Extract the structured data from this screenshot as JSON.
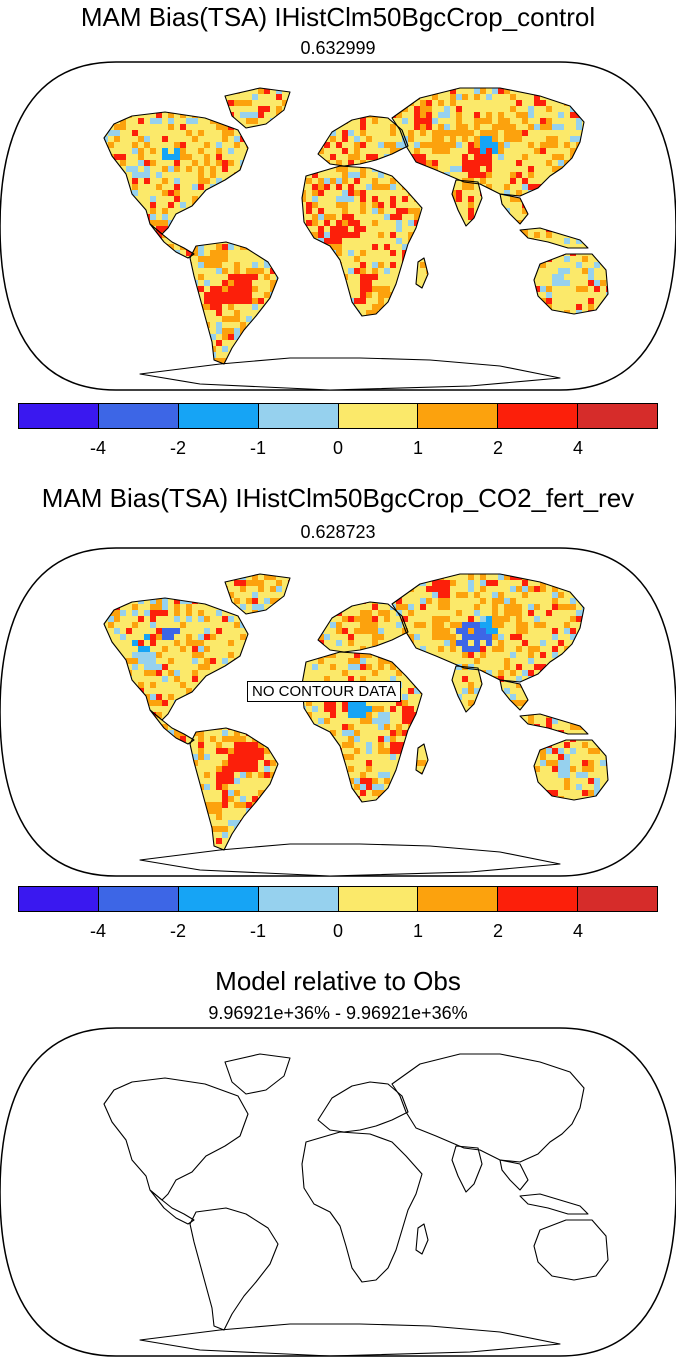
{
  "panels": [
    {
      "title": "MAM Bias(TSA) IHistClm50BgcCrop_control",
      "subtitle": "0.632999"
    },
    {
      "title": "MAM Bias(TSA) IHistClm50BgcCrop_CO2_fert_rev",
      "subtitle": "0.628723"
    },
    {
      "title": "Model relative to Obs",
      "subtitle": "9.96921e+36% - 9.96921e+36%",
      "overlay_text": "NO CONTOUR DATA"
    }
  ],
  "colorbar": {
    "labels": [
      "-4",
      "-2",
      "-1",
      "0",
      "1",
      "2",
      "4"
    ],
    "colors": [
      "#3a18f0",
      "#3d66e6",
      "#16a4f5",
      "#96d1ee",
      "#fbe96a",
      "#fca20d",
      "#fc1f0a",
      "#d62c2a"
    ]
  }
}
